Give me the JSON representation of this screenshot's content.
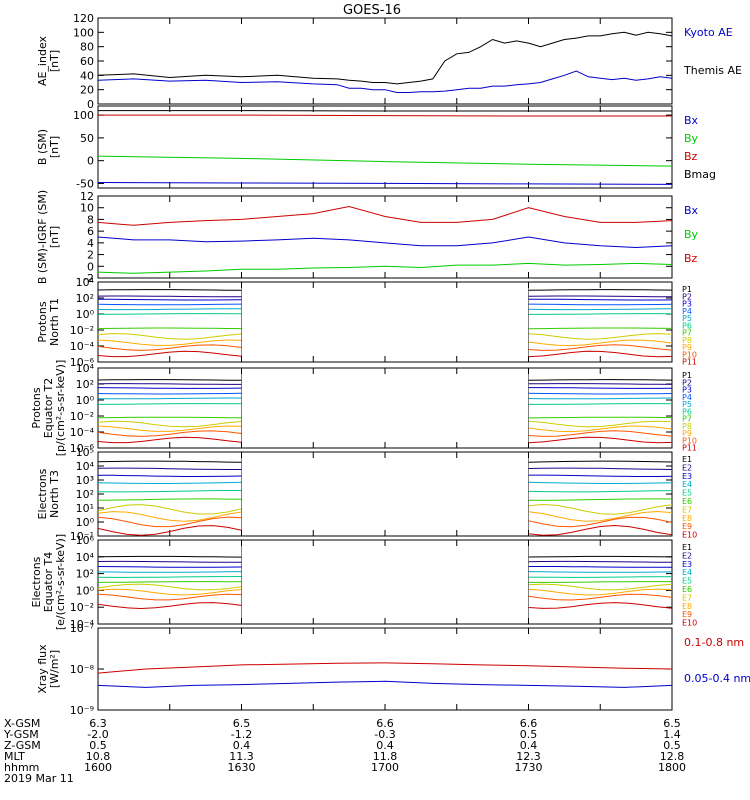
{
  "title": "GOES-16",
  "colors": {
    "black": "#000000",
    "blue": "#0000cc",
    "red": "#cc0000",
    "green": "#00cc00"
  },
  "chart_data": [
    {
      "type": "line",
      "ylabel": [
        "AE_index",
        "[nT]"
      ],
      "ylim": [
        0,
        120
      ],
      "yticks": [
        "0",
        "20",
        "40",
        "60",
        "80",
        "100",
        "120"
      ],
      "ytick_values": [
        0,
        20,
        40,
        60,
        80,
        100,
        120
      ],
      "series": [
        {
          "name": "Kyoto AE",
          "color": "#0000cc",
          "x": [
            0,
            15,
            30,
            45,
            60,
            75,
            90,
            100,
            105,
            110,
            115,
            120,
            125,
            130,
            135,
            140,
            145,
            150,
            155,
            160,
            165,
            170,
            175,
            180,
            185,
            190,
            195,
            200,
            205,
            210,
            215,
            220,
            225,
            230,
            235,
            240
          ],
          "y": [
            33,
            35,
            32,
            33,
            30,
            31,
            28,
            27,
            22,
            22,
            20,
            20,
            16,
            16,
            17,
            17,
            18,
            20,
            22,
            22,
            25,
            25,
            27,
            28,
            30,
            35,
            40,
            46,
            38,
            36,
            34,
            36,
            33,
            35,
            38,
            36
          ]
        },
        {
          "name": "Themis AE",
          "color": "#000000",
          "x": [
            0,
            15,
            30,
            45,
            60,
            75,
            90,
            100,
            105,
            110,
            115,
            120,
            125,
            130,
            135,
            140,
            145,
            150,
            155,
            160,
            165,
            170,
            175,
            180,
            185,
            190,
            195,
            200,
            205,
            210,
            215,
            220,
            225,
            230,
            235,
            240
          ],
          "y": [
            40,
            42,
            37,
            40,
            38,
            40,
            36,
            35,
            33,
            32,
            30,
            30,
            28,
            30,
            32,
            35,
            60,
            70,
            72,
            80,
            90,
            85,
            88,
            85,
            80,
            85,
            90,
            92,
            95,
            95,
            98,
            100,
            96,
            100,
            98,
            95
          ]
        }
      ],
      "legend": [
        "Kyoto AE",
        "Themis AE"
      ]
    },
    {
      "type": "line",
      "ylabel": [
        "B (SM)",
        "[nT]"
      ],
      "ylim": [
        -60,
        120
      ],
      "yticks": [
        "-50",
        "0",
        "50",
        "100"
      ],
      "ytick_values": [
        -50,
        0,
        50,
        100
      ],
      "series": [
        {
          "name": "Bx",
          "color": "#0000cc",
          "x": [
            0,
            60,
            120,
            180,
            240
          ],
          "y": [
            -48,
            -49,
            -50,
            -51,
            -52
          ]
        },
        {
          "name": "By",
          "color": "#00cc00",
          "x": [
            0,
            60,
            120,
            180,
            240
          ],
          "y": [
            10,
            5,
            -2,
            -8,
            -12
          ]
        },
        {
          "name": "Bz",
          "color": "#cc0000",
          "x": [
            0,
            60,
            120,
            180,
            240
          ],
          "y": [
            100,
            100,
            99,
            98,
            98
          ]
        },
        {
          "name": "Bmag",
          "color": "#000000",
          "x": [
            0,
            60,
            120,
            180,
            240
          ],
          "y": [
            110,
            110,
            109,
            109,
            109
          ]
        }
      ],
      "legend": [
        "Bx",
        "By",
        "Bz",
        "Bmag"
      ]
    },
    {
      "type": "line",
      "ylabel": [
        "B (SM)-IGRF (SM)",
        "[nT]"
      ],
      "ylim": [
        -2,
        12
      ],
      "yticks": [
        "-2",
        "0",
        "2",
        "4",
        "6",
        "8",
        "10",
        "12"
      ],
      "ytick_values": [
        -2,
        0,
        2,
        4,
        6,
        8,
        10,
        12
      ],
      "series": [
        {
          "name": "Bx",
          "color": "#0000cc",
          "x": [
            0,
            15,
            30,
            45,
            60,
            75,
            90,
            105,
            120,
            135,
            150,
            165,
            180,
            195,
            210,
            225,
            240
          ],
          "y": [
            5,
            4.5,
            4.5,
            4.2,
            4.3,
            4.5,
            4.8,
            4.5,
            4.0,
            3.5,
            3.5,
            4.0,
            5.0,
            4.0,
            3.5,
            3.2,
            3.5
          ]
        },
        {
          "name": "By",
          "color": "#00cc00",
          "x": [
            0,
            15,
            30,
            45,
            60,
            75,
            90,
            105,
            120,
            135,
            150,
            165,
            180,
            195,
            210,
            225,
            240
          ],
          "y": [
            -1,
            -1.2,
            -1,
            -0.8,
            -0.5,
            -0.5,
            -0.3,
            -0.2,
            0,
            -0.2,
            0.2,
            0.2,
            0.5,
            0.2,
            0.3,
            0.5,
            0.3
          ]
        },
        {
          "name": "Bz",
          "color": "#cc0000",
          "x": [
            0,
            15,
            30,
            45,
            60,
            75,
            90,
            105,
            120,
            135,
            150,
            165,
            180,
            195,
            210,
            225,
            240
          ],
          "y": [
            7.5,
            7.0,
            7.5,
            7.8,
            8.0,
            8.5,
            9.0,
            10.2,
            8.5,
            7.5,
            7.5,
            8.0,
            10.0,
            8.5,
            7.5,
            7.5,
            7.8
          ]
        }
      ],
      "legend": [
        "Bx",
        "By",
        "Bz"
      ]
    },
    {
      "type": "line",
      "ylabel": [
        "Protons",
        "North T1"
      ],
      "scale": "log",
      "ylim": [
        -6,
        4
      ],
      "yticks": [
        "10⁻⁶",
        "10⁻⁴",
        "10⁻²",
        "10⁰",
        "10²",
        "10⁴"
      ],
      "ytick_values": [
        -6,
        -4,
        -2,
        0,
        2,
        4
      ],
      "gap": [
        60,
        180
      ],
      "legend": [
        "P1",
        "P2",
        "P3",
        "P4",
        "P5",
        "P6",
        "P7",
        "P8",
        "P9",
        "P10",
        "P11"
      ],
      "legend_colors": [
        "#000000",
        "#220088",
        "#0000cc",
        "#0055ff",
        "#00aacc",
        "#00cc88",
        "#33cc00",
        "#cccc00",
        "#ffaa00",
        "#ff5500",
        "#cc0000"
      ],
      "series_levels": [
        3,
        2.2,
        1.8,
        1.2,
        0.6,
        0,
        -1.8,
        -2.8,
        -3.6,
        -4.2,
        -5
      ]
    },
    {
      "type": "line",
      "ylabel": [
        "Protons",
        "Equator T2",
        "[p/(cm²-s-sr-keV)]"
      ],
      "scale": "log",
      "ylim": [
        -6,
        4
      ],
      "yticks": [
        "10⁻⁶",
        "10⁻⁴",
        "10⁻²",
        "10⁰",
        "10²",
        "10⁴"
      ],
      "ytick_values": [
        -6,
        -4,
        -2,
        0,
        2,
        4
      ],
      "gap": [
        60,
        180
      ],
      "legend": [
        "P1",
        "P2",
        "P3",
        "P4",
        "P5",
        "P6",
        "P7",
        "P8",
        "P9",
        "P10",
        "P11"
      ],
      "legend_colors": [
        "#000000",
        "#220088",
        "#0000cc",
        "#0055ff",
        "#00aacc",
        "#00cc88",
        "#33cc00",
        "#cccc00",
        "#ffaa00",
        "#ff5500",
        "#cc0000"
      ],
      "series_levels": [
        2.5,
        2.0,
        1.5,
        0.8,
        0.2,
        -0.5,
        -2.2,
        -3.0,
        -3.6,
        -4.2,
        -5
      ]
    },
    {
      "type": "line",
      "ylabel": [
        "Electrons",
        "North T3"
      ],
      "scale": "log",
      "ylim": [
        -1,
        5
      ],
      "yticks": [
        "10⁻¹",
        "10⁰",
        "10¹",
        "10²",
        "10³",
        "10⁴",
        "10⁵"
      ],
      "ytick_values": [
        -1,
        0,
        1,
        2,
        3,
        4,
        5
      ],
      "gap": [
        60,
        180
      ],
      "legend": [
        "E1",
        "E2",
        "E3",
        "E4",
        "E5",
        "E6",
        "E7",
        "E8",
        "E9",
        "E10"
      ],
      "legend_colors": [
        "#000000",
        "#220088",
        "#0000cc",
        "#00aacc",
        "#00cc88",
        "#33cc00",
        "#cccc00",
        "#ffaa00",
        "#ff5500",
        "#cc0000"
      ],
      "series_levels": [
        4.3,
        3.8,
        3.3,
        2.8,
        2.2,
        1.6,
        0.9,
        0.4,
        0.0,
        -0.6
      ]
    },
    {
      "type": "line",
      "ylabel": [
        "Electrons",
        "Equator T4",
        "[e/(cm²-s-sr-keV)]"
      ],
      "scale": "log",
      "ylim": [
        -4,
        6
      ],
      "yticks": [
        "10⁻⁴",
        "10⁻²",
        "10⁰",
        "10²",
        "10⁴",
        "10⁶"
      ],
      "ytick_values": [
        -4,
        -2,
        0,
        2,
        4,
        6
      ],
      "gap": [
        60,
        180
      ],
      "legend": [
        "E1",
        "E2",
        "E3",
        "E4",
        "E5",
        "E6",
        "E7",
        "E8",
        "E9",
        "E10"
      ],
      "legend_colors": [
        "#000000",
        "#220088",
        "#0000cc",
        "#00aacc",
        "#00cc88",
        "#33cc00",
        "#cccc00",
        "#ffaa00",
        "#ff5500",
        "#cc0000"
      ],
      "series_levels": [
        4.0,
        3.4,
        2.8,
        2.2,
        1.6,
        1.0,
        0.4,
        -0.2,
        -0.8,
        -1.8
      ]
    },
    {
      "type": "line",
      "ylabel": [
        "Xray flux",
        "[W/m²]"
      ],
      "scale": "log",
      "ylim": [
        -9,
        -7
      ],
      "yticks": [
        "10⁻⁹",
        "10⁻⁸",
        "10⁻⁷"
      ],
      "ytick_values": [
        -9,
        -8,
        -7
      ],
      "series": [
        {
          "name": "0.1-0.8 nm",
          "color": "#cc0000",
          "x": [
            0,
            20,
            40,
            60,
            80,
            100,
            120,
            140,
            160,
            180,
            200,
            220,
            240
          ],
          "y": [
            -8.1,
            -8.0,
            -7.95,
            -7.9,
            -7.88,
            -7.86,
            -7.85,
            -7.87,
            -7.9,
            -7.92,
            -7.95,
            -7.98,
            -8.0
          ]
        },
        {
          "name": "0.05-0.4 nm",
          "color": "#0000cc",
          "x": [
            0,
            20,
            40,
            60,
            80,
            100,
            120,
            140,
            160,
            180,
            200,
            220,
            240
          ],
          "y": [
            -8.4,
            -8.45,
            -8.4,
            -8.38,
            -8.35,
            -8.32,
            -8.3,
            -8.35,
            -8.38,
            -8.4,
            -8.42,
            -8.45,
            -8.4
          ]
        }
      ],
      "legend": [
        "0.1-0.8 nm",
        "0.05-0.4 nm"
      ]
    }
  ],
  "xaxis": {
    "rows": [
      {
        "label": "X-GSM",
        "values": [
          "6.3",
          "6.5",
          "6.6",
          "6.6",
          "6.5"
        ]
      },
      {
        "label": "Y-GSM",
        "values": [
          "-2.0",
          "-1.2",
          "-0.3",
          "0.5",
          "1.4"
        ]
      },
      {
        "label": "Z-GSM",
        "values": [
          "0.5",
          "0.4",
          "0.4",
          "0.4",
          "0.5"
        ]
      },
      {
        "label": "MLT",
        "values": [
          "10.8",
          "11.3",
          "11.8",
          "12.3",
          "12.8"
        ]
      },
      {
        "label": "hhmm",
        "values": [
          "1600",
          "1630",
          "1700",
          "1730",
          "1800"
        ]
      }
    ],
    "date": "2019 Mar 11",
    "xlim": [
      0,
      240
    ]
  }
}
